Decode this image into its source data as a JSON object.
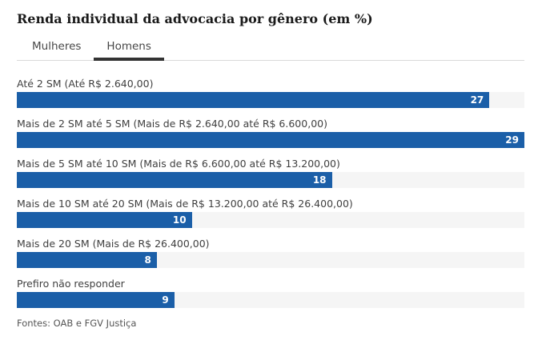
{
  "title": "Renda individual da advocacia por gênero (em %)",
  "tabs": {
    "items": [
      {
        "label": "Mulheres",
        "active": false
      },
      {
        "label": "Homens",
        "active": true
      }
    ]
  },
  "chart_data": {
    "type": "bar",
    "orientation": "horizontal",
    "title": "Renda individual da advocacia por gênero (em %)",
    "series_label": "Homens",
    "categories": [
      "Até 2 SM (Até R$ 2.640,00)",
      "Mais de 2 SM até 5 SM (Mais de R$ 2.640,00 até R$ 6.600,00)",
      "Mais de 5 SM até 10 SM (Mais de R$ 6.600,00 até R$ 13.200,00)",
      "Mais de 10 SM até 20 SM (Mais de R$ 13.200,00 até R$ 26.400,00)",
      "Mais de 20 SM (Mais de R$ 26.400,00)",
      "Prefiro não responder"
    ],
    "values": [
      27,
      29,
      18,
      10,
      8,
      9
    ],
    "xlim": [
      0,
      29
    ],
    "value_labels_shown": true,
    "grid": false,
    "legend": "none",
    "colors": {
      "bar": "#1b5fa8",
      "track": "#f5f5f5",
      "value_text": "#ffffff"
    }
  },
  "footer": {
    "source": "Fontes: OAB e FGV Justiça"
  }
}
